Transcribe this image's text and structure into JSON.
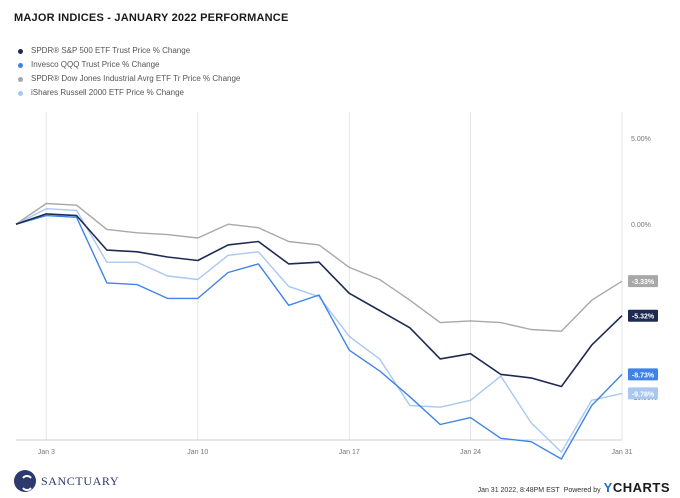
{
  "chart_data": {
    "type": "line",
    "title": "MAJOR INDICES - JANUARY 2022 PERFORMANCE",
    "x_labels": [
      "Jan 3",
      "Jan 10",
      "Jan 17",
      "Jan 24",
      "Jan 31"
    ],
    "y_ticks": [
      "5.00%",
      "0.00%",
      "-10.00%"
    ],
    "ylim": [
      -12.5,
      6.5
    ],
    "grid": "vertical",
    "legend_position": "top-left",
    "n_points": 21,
    "x": [
      "Dec 31",
      "Jan 3",
      "Jan 4",
      "Jan 5",
      "Jan 6",
      "Jan 7",
      "Jan 10",
      "Jan 11",
      "Jan 12",
      "Jan 13",
      "Jan 14",
      "Jan 18",
      "Jan 19",
      "Jan 20",
      "Jan 21",
      "Jan 24",
      "Jan 25",
      "Jan 26",
      "Jan 27",
      "Jan 28",
      "Jan 31"
    ],
    "series": [
      {
        "name": "SPDR® S&P 500 ETF Trust Price % Change",
        "color": "#1e2a52",
        "values": [
          0,
          0.6,
          0.5,
          -1.5,
          -1.6,
          -1.9,
          -2.1,
          -1.2,
          -1.0,
          -2.3,
          -2.2,
          -4.0,
          -5.0,
          -6.0,
          -7.8,
          -7.5,
          -8.7,
          -8.9,
          -9.4,
          -7.0,
          -5.3
        ],
        "end_label": "-5.32%"
      },
      {
        "name": "Invesco QQQ Trust Price % Change",
        "color": "#3f84e5",
        "values": [
          0,
          0.5,
          0.4,
          -3.4,
          -3.5,
          -4.3,
          -4.3,
          -2.8,
          -2.3,
          -4.7,
          -4.1,
          -7.3,
          -8.5,
          -10.0,
          -11.6,
          -11.2,
          -12.4,
          -12.6,
          -13.6,
          -10.5,
          -8.7
        ],
        "end_label": "-8.73%"
      },
      {
        "name": "SPDR® Dow Jones Industrial Avrg ETF Tr Price % Change",
        "color": "#a8a8a8",
        "values": [
          0,
          1.2,
          1.1,
          -0.3,
          -0.5,
          -0.6,
          -0.8,
          0.0,
          -0.2,
          -1.0,
          -1.2,
          -2.5,
          -3.2,
          -4.4,
          -5.7,
          -5.6,
          -5.7,
          -6.1,
          -6.2,
          -4.4,
          -3.3
        ],
        "end_label": "-3.33%"
      },
      {
        "name": "iShares Russell 2000 ETF Price % Change",
        "color": "#a9c8f1",
        "values": [
          0,
          0.9,
          0.8,
          -2.2,
          -2.2,
          -3.0,
          -3.2,
          -1.8,
          -1.6,
          -3.6,
          -4.2,
          -6.5,
          -7.8,
          -10.5,
          -10.6,
          -10.2,
          -8.8,
          -11.5,
          -13.2,
          -10.2,
          -9.8
        ],
        "end_label": "-9.78%"
      }
    ]
  },
  "footer": {
    "logo_text": "SANCTUARY",
    "timestamp": "Jan 31 2022, 8:48PM EST",
    "powered_by": "Powered by",
    "brand_y": "Y",
    "brand_rest": "CHARTS"
  }
}
